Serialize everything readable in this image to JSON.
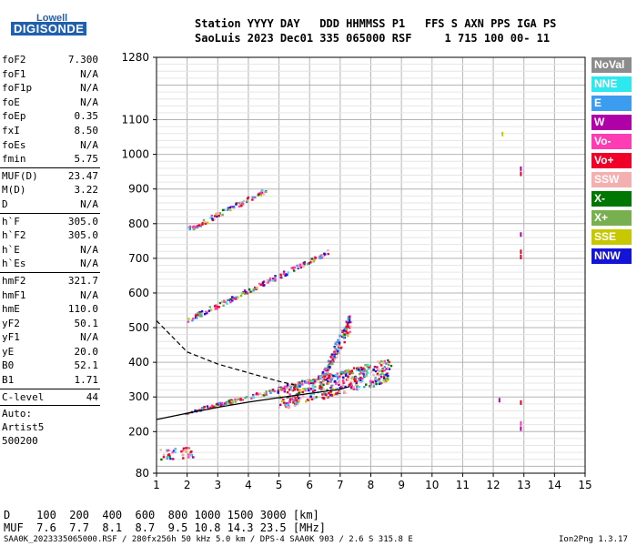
{
  "logo": {
    "brand": "Lowell",
    "product": "DIGISONDE"
  },
  "header": {
    "line1": "Station YYYY DAY   DDD HHMMSS P1   FFS S AXN PPS IGA PS",
    "line2": "SaoLuis 2023 Dec01 335 065000 RSF     1 715 100 00- 11"
  },
  "params": {
    "group1": [
      {
        "name": "foF2",
        "value": "7.300"
      },
      {
        "name": "foF1",
        "value": "N/A"
      },
      {
        "name": "foF1p",
        "value": "N/A"
      },
      {
        "name": "foE",
        "value": "N/A"
      },
      {
        "name": "foEp",
        "value": "0.35"
      },
      {
        "name": "fxI",
        "value": "8.50"
      },
      {
        "name": "foEs",
        "value": "N/A"
      },
      {
        "name": "fmin",
        "value": "5.75"
      }
    ],
    "group2": [
      {
        "name": "MUF(D)",
        "value": "23.47"
      },
      {
        "name": "M(D)",
        "value": "3.22"
      },
      {
        "name": "D",
        "value": "N/A"
      }
    ],
    "group3": [
      {
        "name": "h`F",
        "value": "305.0"
      },
      {
        "name": "h`F2",
        "value": "305.0"
      },
      {
        "name": "h`E",
        "value": "N/A"
      },
      {
        "name": "h`Es",
        "value": "N/A"
      }
    ],
    "group4": [
      {
        "name": "hmF2",
        "value": "321.7"
      },
      {
        "name": "hmF1",
        "value": "N/A"
      },
      {
        "name": "hmE",
        "value": "110.0"
      },
      {
        "name": "yF2",
        "value": "50.1"
      },
      {
        "name": "yF1",
        "value": "N/A"
      },
      {
        "name": "yE",
        "value": "20.0"
      },
      {
        "name": "B0",
        "value": "52.1"
      },
      {
        "name": "B1",
        "value": "1.71"
      }
    ],
    "clevel": {
      "name": "C-level",
      "value": "44"
    },
    "auto": [
      "Auto:",
      "Artist5",
      "500200"
    ]
  },
  "legend": [
    {
      "label": "NoVal",
      "color": "#8c8c8c"
    },
    {
      "label": "NNE",
      "color": "#2ee8f0"
    },
    {
      "label": "E",
      "color": "#3c9cf0"
    },
    {
      "label": "W",
      "color": "#b000a8"
    },
    {
      "label": "Vo-",
      "color": "#ff3cb4"
    },
    {
      "label": "Vo+",
      "color": "#f00028"
    },
    {
      "label": "SSW",
      "color": "#f4b0b0"
    },
    {
      "label": "X-",
      "color": "#007800"
    },
    {
      "label": "X+",
      "color": "#78b050"
    },
    {
      "label": "SSE",
      "color": "#c8c800"
    },
    {
      "label": "NNW",
      "color": "#1414d8"
    }
  ],
  "footer": {
    "d_row": "D    100  200  400  600  800 1000 1500 3000 [km]",
    "muf_row": "MUF  7.6  7.7  8.1  8.7  9.5 10.8 14.3 23.5 [MHz]",
    "file_info": "SAA0K_2023335065000.RSF / 280fx256h 50 kHz 5.0 km / DPS-4 SAA0K 903 / 2.6 S 315.8 E",
    "version": "Ion2Png 1.3.17"
  },
  "chart_data": {
    "type": "scatter",
    "xlim": [
      1,
      15
    ],
    "ylim": [
      80,
      1280
    ],
    "xticks": [
      "1",
      "2",
      "3",
      "4",
      "5",
      "6",
      "7",
      "8",
      "9",
      "10",
      "11",
      "12",
      "13",
      "14",
      "15"
    ],
    "yticks": [
      {
        "v": 80,
        "label": "80"
      },
      {
        "v": 200,
        "label": "200"
      },
      {
        "v": 300,
        "label": "300"
      },
      {
        "v": 400,
        "label": "400"
      },
      {
        "v": 500,
        "label": "500"
      },
      {
        "v": 600,
        "label": "600"
      },
      {
        "v": 700,
        "label": "700"
      },
      {
        "v": 800,
        "label": "800"
      },
      {
        "v": 900,
        "label": "900"
      },
      {
        "v": 1000,
        "label": "1000"
      },
      {
        "v": 1100,
        "label": "1100"
      },
      {
        "v": 1280,
        "label": "1280"
      }
    ],
    "grid": true,
    "traces": [
      {
        "name": "first-hop",
        "f0": 1.9,
        "f1": 7.2,
        "h0": 255,
        "h1": 375,
        "spread": 0.09,
        "density": 170
      },
      {
        "name": "first-hop-spread",
        "f0": 5.0,
        "f1": 8.6,
        "h0": 300,
        "h1": 380,
        "spread": 0.55,
        "density": 420
      },
      {
        "name": "spread-column",
        "f0": 6.3,
        "f1": 7.3,
        "h0": 340,
        "h1": 520,
        "spread": 0.35,
        "density": 160
      },
      {
        "name": "second-hop",
        "f0": 2.0,
        "f1": 6.6,
        "h0": 525,
        "h1": 720,
        "spread": 0.12,
        "density": 150
      },
      {
        "name": "third-hop",
        "f0": 2.0,
        "f1": 4.6,
        "h0": 785,
        "h1": 900,
        "spread": 0.12,
        "density": 90
      },
      {
        "name": "low-echo",
        "f0": 1.1,
        "f1": 2.3,
        "h0": 135,
        "h1": 145,
        "spread": 0.25,
        "density": 40
      }
    ],
    "profile_solid": [
      [
        1,
        235
      ],
      [
        2,
        253
      ],
      [
        3,
        270
      ],
      [
        4,
        285
      ],
      [
        5,
        298
      ],
      [
        6,
        310
      ],
      [
        7,
        322
      ],
      [
        7.3,
        330
      ]
    ],
    "profile_dashed": [
      [
        1,
        520
      ],
      [
        2,
        430
      ],
      [
        3,
        395
      ],
      [
        4,
        370
      ],
      [
        5,
        345
      ],
      [
        5.5,
        335
      ]
    ],
    "extra_points": [
      {
        "f": 12.2,
        "h": 292,
        "c": "#b000a8"
      },
      {
        "f": 12.3,
        "h": 1060,
        "c": "#c8c800"
      },
      {
        "f": 12.9,
        "h": 960,
        "c": "#b000a8"
      },
      {
        "f": 12.9,
        "h": 945,
        "c": "#f00028"
      },
      {
        "f": 12.9,
        "h": 770,
        "c": "#b000a8"
      },
      {
        "f": 12.9,
        "h": 720,
        "c": "#f00028"
      },
      {
        "f": 12.9,
        "h": 705,
        "c": "#f00028"
      },
      {
        "f": 12.9,
        "h": 285,
        "c": "#f00028"
      },
      {
        "f": 12.9,
        "h": 225,
        "c": "#ff3cb4"
      },
      {
        "f": 12.9,
        "h": 210,
        "c": "#b000a8"
      }
    ]
  }
}
